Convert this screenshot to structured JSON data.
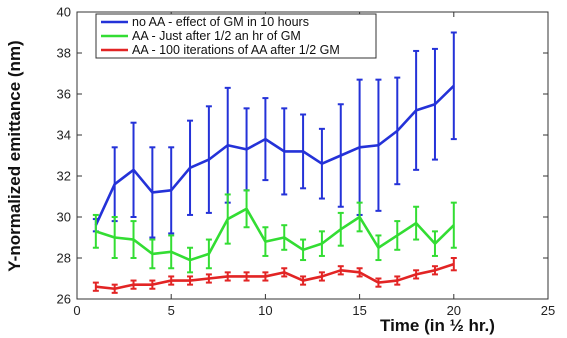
{
  "chart_data": {
    "type": "line",
    "xlabel": "Time (in ½ hr.)",
    "ylabel": "Y-normalized emittance (nm)",
    "xlim": [
      0,
      25
    ],
    "ylim": [
      26,
      40
    ],
    "xticks": [
      0,
      5,
      10,
      15,
      20,
      25
    ],
    "yticks": [
      26,
      28,
      30,
      32,
      34,
      36,
      38,
      40
    ],
    "grid": false,
    "legend_position": "top-left",
    "x": [
      1,
      2,
      3,
      4,
      5,
      6,
      7,
      8,
      9,
      10,
      11,
      12,
      13,
      14,
      15,
      16,
      17,
      18,
      19,
      20
    ],
    "series": [
      {
        "name": "no AA - effect of GM in 10 hours",
        "color": "#2432d8",
        "values": [
          29.6,
          31.6,
          32.3,
          31.2,
          31.3,
          32.4,
          32.8,
          33.5,
          33.3,
          33.8,
          33.2,
          33.2,
          32.6,
          33.0,
          33.4,
          33.5,
          34.2,
          35.2,
          35.5,
          36.4
        ],
        "err": [
          0.3,
          1.8,
          2.3,
          2.2,
          2.1,
          2.3,
          2.6,
          2.8,
          2.0,
          2.0,
          2.1,
          1.8,
          1.7,
          2.5,
          3.3,
          3.2,
          2.6,
          2.9,
          2.7,
          2.6
        ]
      },
      {
        "name": "AA -  Just after 1/2 an hr of GM",
        "color": "#33dd33",
        "values": [
          29.3,
          29.0,
          28.9,
          28.2,
          28.3,
          27.9,
          28.2,
          29.9,
          30.4,
          28.8,
          29.0,
          28.4,
          28.7,
          29.4,
          30.0,
          28.5,
          29.1,
          29.7,
          28.7,
          29.6
        ],
        "err": [
          0.8,
          1.0,
          0.9,
          0.7,
          0.8,
          0.6,
          0.7,
          1.2,
          0.9,
          0.7,
          0.6,
          0.5,
          0.6,
          0.8,
          0.7,
          0.6,
          0.7,
          0.8,
          0.6,
          1.1
        ]
      },
      {
        "name": "AA - 100 iterations of AA after 1/2 GM",
        "color": "#e22424",
        "values": [
          26.6,
          26.5,
          26.7,
          26.7,
          26.9,
          26.9,
          27.0,
          27.1,
          27.1,
          27.1,
          27.3,
          26.9,
          27.1,
          27.4,
          27.3,
          26.8,
          26.9,
          27.2,
          27.4,
          27.7
        ],
        "err": [
          0.2,
          0.2,
          0.2,
          0.2,
          0.2,
          0.2,
          0.2,
          0.2,
          0.2,
          0.2,
          0.2,
          0.2,
          0.2,
          0.2,
          0.2,
          0.2,
          0.2,
          0.2,
          0.2,
          0.3
        ]
      }
    ]
  }
}
